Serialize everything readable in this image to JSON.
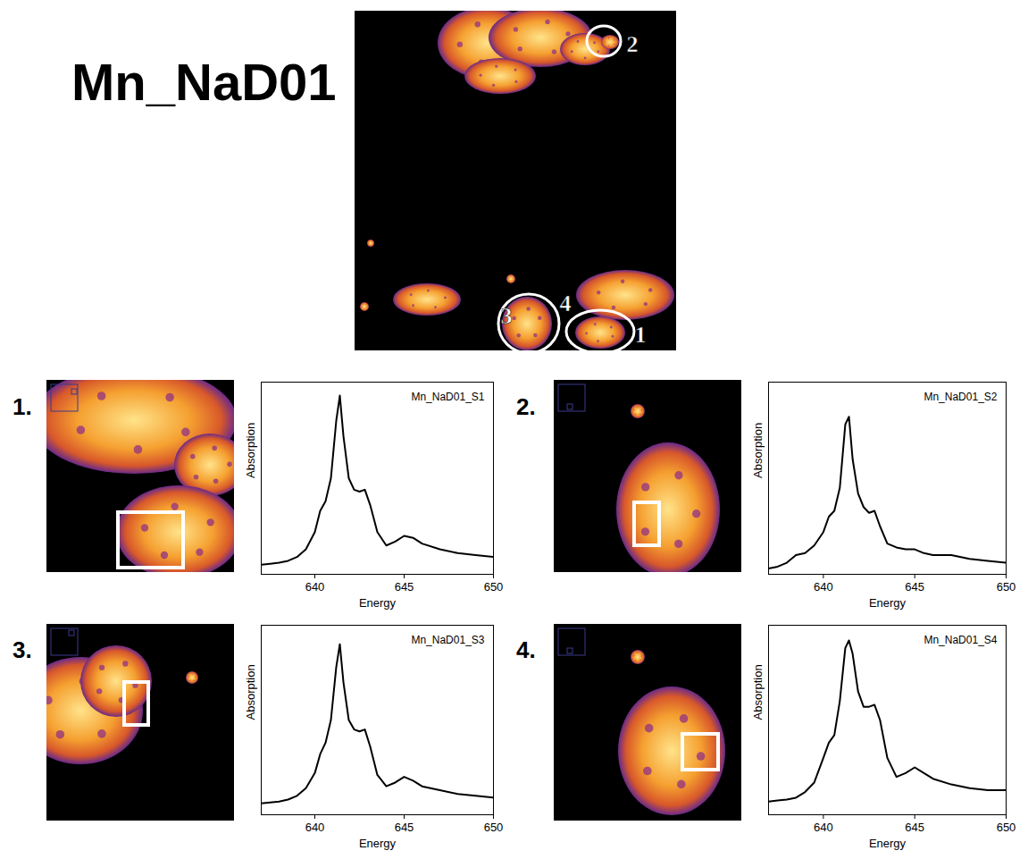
{
  "figure": {
    "title": "Mn_NaD01",
    "map_labels": [
      "1",
      "2",
      "3",
      "4"
    ],
    "panel_labels": [
      "1.",
      "2.",
      "3.",
      "4."
    ]
  },
  "chart_data": [
    {
      "type": "line",
      "title": "Mn_NaD01_S1",
      "x_label": "Energy",
      "y_label": "Absorption",
      "x": [
        637,
        637.5,
        638,
        638.5,
        639,
        639.5,
        640,
        640.3,
        640.6,
        640.9,
        641.2,
        641.4,
        641.6,
        641.9,
        642.2,
        642.5,
        642.8,
        643.1,
        643.5,
        644,
        644.5,
        645,
        645.5,
        646,
        647,
        648,
        649,
        650
      ],
      "xlim": [
        637,
        650
      ],
      "xticks": [
        640,
        645,
        650
      ],
      "ylim": [
        0,
        1
      ],
      "tick_labels": "x",
      "series": [
        {
          "color": "#000000",
          "values": [
            0.05,
            0.055,
            0.06,
            0.07,
            0.09,
            0.13,
            0.22,
            0.33,
            0.38,
            0.5,
            0.8,
            0.93,
            0.72,
            0.5,
            0.44,
            0.43,
            0.44,
            0.36,
            0.22,
            0.15,
            0.17,
            0.2,
            0.19,
            0.16,
            0.13,
            0.11,
            0.1,
            0.09
          ]
        }
      ]
    },
    {
      "type": "line",
      "title": "Mn_NaD01_S2",
      "x_label": "Energy",
      "y_label": "Absorption",
      "x": [
        637,
        637.5,
        638,
        638.5,
        639,
        639.5,
        640,
        640.3,
        640.6,
        640.9,
        641.2,
        641.4,
        641.6,
        641.9,
        642.2,
        642.5,
        642.8,
        643.1,
        643.5,
        644,
        644.5,
        645,
        645.5,
        646,
        647,
        648,
        649,
        650
      ],
      "xlim": [
        637,
        650
      ],
      "xticks": [
        640,
        645,
        650
      ],
      "ylim": [
        0,
        1
      ],
      "tick_labels": "x",
      "series": [
        {
          "color": "#000000",
          "values": [
            0.03,
            0.04,
            0.06,
            0.1,
            0.11,
            0.15,
            0.22,
            0.3,
            0.33,
            0.45,
            0.78,
            0.82,
            0.6,
            0.42,
            0.35,
            0.32,
            0.33,
            0.25,
            0.16,
            0.14,
            0.13,
            0.13,
            0.11,
            0.1,
            0.1,
            0.08,
            0.07,
            0.06
          ]
        }
      ]
    },
    {
      "type": "line",
      "title": "Mn_NaD01_S3",
      "x_label": "Energy",
      "y_label": "Absorption",
      "x": [
        637,
        637.5,
        638,
        638.5,
        639,
        639.5,
        640,
        640.3,
        640.6,
        640.9,
        641.2,
        641.4,
        641.6,
        641.9,
        642.2,
        642.5,
        642.8,
        643.1,
        643.5,
        644,
        644.5,
        645,
        645.5,
        646,
        647,
        648,
        649,
        650
      ],
      "xlim": [
        637,
        650
      ],
      "xticks": [
        640,
        645,
        650
      ],
      "ylim": [
        0,
        1
      ],
      "tick_labels": "x",
      "series": [
        {
          "color": "#000000",
          "values": [
            0.06,
            0.065,
            0.07,
            0.08,
            0.1,
            0.14,
            0.22,
            0.32,
            0.38,
            0.5,
            0.78,
            0.9,
            0.7,
            0.5,
            0.45,
            0.44,
            0.45,
            0.36,
            0.21,
            0.15,
            0.17,
            0.2,
            0.18,
            0.15,
            0.13,
            0.11,
            0.1,
            0.09
          ]
        }
      ]
    },
    {
      "type": "line",
      "title": "Mn_NaD01_S4",
      "x_label": "Energy",
      "y_label": "Absorption",
      "x": [
        637,
        637.5,
        638,
        638.5,
        639,
        639.5,
        640,
        640.3,
        640.6,
        640.9,
        641.2,
        641.4,
        641.6,
        641.9,
        642.2,
        642.5,
        642.8,
        643.1,
        643.5,
        644,
        644.5,
        645,
        645.5,
        646,
        647,
        648,
        649,
        650
      ],
      "xlim": [
        637,
        650
      ],
      "xticks": [
        640,
        645,
        650
      ],
      "ylim": [
        0,
        1
      ],
      "tick_labels": "x",
      "series": [
        {
          "color": "#000000",
          "values": [
            0.07,
            0.075,
            0.08,
            0.09,
            0.12,
            0.17,
            0.3,
            0.38,
            0.42,
            0.6,
            0.88,
            0.92,
            0.85,
            0.65,
            0.57,
            0.57,
            0.58,
            0.5,
            0.3,
            0.2,
            0.22,
            0.25,
            0.22,
            0.19,
            0.16,
            0.14,
            0.13,
            0.13
          ]
        }
      ]
    }
  ]
}
